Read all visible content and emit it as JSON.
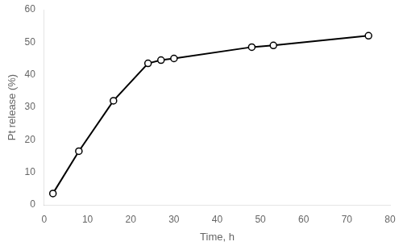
{
  "chart_data": {
    "type": "line",
    "x": [
      2,
      8,
      16,
      24,
      27,
      30,
      48,
      53,
      75
    ],
    "values": [
      3.5,
      16.5,
      32,
      43.5,
      44.5,
      45,
      48.5,
      49,
      52
    ],
    "color": "#000000",
    "marker": "o",
    "xlabel": "Time, h",
    "ylabel": "Pt release (%)",
    "xlim": [
      0,
      80
    ],
    "ylim": [
      0,
      60
    ],
    "xticks": [
      0,
      10,
      20,
      30,
      40,
      50,
      60,
      70,
      80
    ],
    "yticks": [
      0,
      10,
      20,
      30,
      40,
      50,
      60
    ],
    "grid": false
  }
}
